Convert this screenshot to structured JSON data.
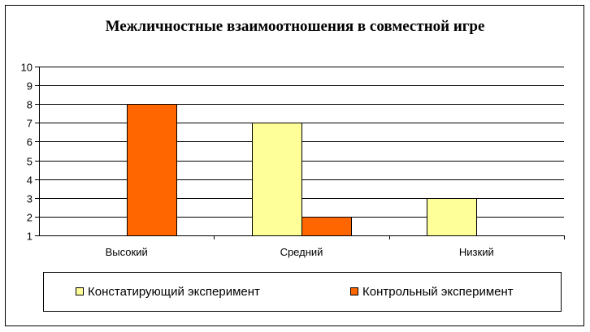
{
  "chart_data": {
    "type": "bar",
    "title": "Межличностные взаимоотношения в совместной игре",
    "xlabel": "",
    "ylabel": "",
    "categories": [
      "Высокий",
      "Средний",
      "Низкий"
    ],
    "series": [
      {
        "name": "Констатирующий эксперимент",
        "values": [
          null,
          7,
          3
        ],
        "color": "#FFFF99"
      },
      {
        "name": "Контрольный эксперимент",
        "values": [
          8,
          2,
          null
        ],
        "color": "#FF6600"
      }
    ],
    "ylim": [
      1,
      10
    ],
    "yticks": [
      "1",
      "2",
      "3",
      "4",
      "5",
      "6",
      "7",
      "8",
      "9",
      "10"
    ],
    "grid": true,
    "legend_position": "bottom"
  }
}
